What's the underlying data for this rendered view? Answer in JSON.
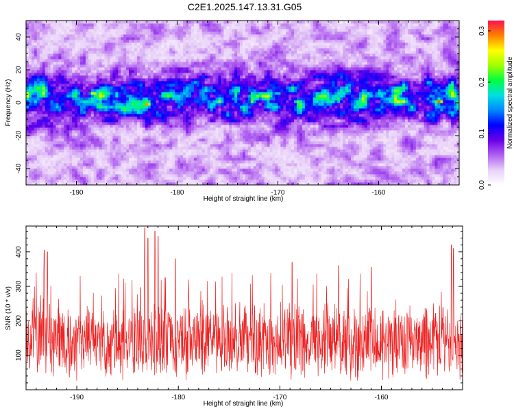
{
  "title": "C2E1.2025.147.13.31.G05",
  "colors": {
    "snr_line": "#ee2222",
    "colormap": [
      "#ffffff",
      "#e8d0f8",
      "#b060f0",
      "#6a00e8",
      "#0000ff",
      "#0088ff",
      "#00e0e0",
      "#00ff40",
      "#a0ff00",
      "#ffff00",
      "#ff8000",
      "#ff1050"
    ]
  },
  "chart_data": [
    {
      "type": "heatmap",
      "xlabel": "Height of straight line (km)",
      "ylabel": "Frequency (Hz)",
      "xlim": [
        -195,
        -152
      ],
      "ylim": [
        -50,
        50
      ],
      "x_ticks": [
        "-190",
        "-180",
        "-170",
        "-160"
      ],
      "y_ticks": [
        "-40",
        "-20",
        "0",
        "20",
        "40"
      ],
      "colorbar": {
        "label": "Normalized spectral amplitude",
        "range": [
          0,
          0.32
        ],
        "ticks": [
          "0.0",
          "0.1",
          "0.2",
          "0.3"
        ]
      },
      "band_center_hz": 3,
      "band_halfwidth_hz": 13,
      "peak_amplitude": 0.3,
      "hot_spots": [
        {
          "x": -188.3,
          "y": 6,
          "v": 0.26
        },
        {
          "x": -183,
          "y": -1,
          "v": 0.29
        },
        {
          "x": -186,
          "y": 5,
          "v": 0.2
        },
        {
          "x": -168,
          "y": 1,
          "v": 0.22
        },
        {
          "x": -164,
          "y": 2,
          "v": 0.22
        },
        {
          "x": -158,
          "y": 1,
          "v": 0.27
        },
        {
          "x": -154,
          "y": 1,
          "v": 0.3
        },
        {
          "x": -170,
          "y": 6,
          "v": 0.18
        }
      ]
    },
    {
      "type": "line",
      "xlabel": "Height of straight line (km)",
      "ylabel": "SNR (10 * v/v)",
      "xlim": [
        -195,
        -152
      ],
      "ylim": [
        0,
        475
      ],
      "x_ticks": [
        "-190",
        "-180",
        "-170",
        "-160"
      ],
      "y_ticks": [
        "100",
        "200",
        "300",
        "400"
      ],
      "typical_range": [
        60,
        250
      ],
      "peaks": [
        {
          "x": -193.2,
          "y": 405
        },
        {
          "x": -192.9,
          "y": 400
        },
        {
          "x": -183.3,
          "y": 470
        },
        {
          "x": -183.0,
          "y": 440
        },
        {
          "x": -182.3,
          "y": 460
        },
        {
          "x": -182.0,
          "y": 445
        },
        {
          "x": -180.3,
          "y": 380
        },
        {
          "x": -168.8,
          "y": 370
        },
        {
          "x": -164.2,
          "y": 360
        },
        {
          "x": -161.0,
          "y": 355
        },
        {
          "x": -153.1,
          "y": 420
        },
        {
          "x": -152.9,
          "y": 410
        }
      ]
    }
  ]
}
